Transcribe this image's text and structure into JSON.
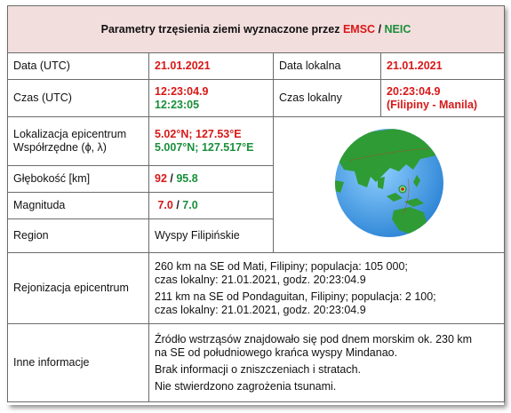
{
  "header": {
    "title_prefix": "Parametry trzęsienia ziemi wyznaczone przez ",
    "emsc": "EMSC",
    "sep": " / ",
    "neic": "NEIC"
  },
  "rows": {
    "data_utc": {
      "label": "Data (UTC)",
      "value": "21.01.2021"
    },
    "data_lokalna": {
      "label": "Data lokalna",
      "value": "21.01.2021"
    },
    "czas_utc": {
      "label": "Czas (UTC)",
      "emsc": "12:23:04.9",
      "neic": "12:23:05"
    },
    "czas_lokalny": {
      "label": "Czas lokalny",
      "value": "20:23:04.9",
      "place": "(Filipiny  - Manila)"
    },
    "lokalizacja": {
      "label_1": "Lokalizacja epicentrum",
      "label_2": "Współrzędne (ϕ, λ)",
      "emsc": "5.02°N; 127.53°E",
      "neic": "5.007°N; 127.517°E"
    },
    "glebokosc": {
      "label": "Głębokość [km]",
      "emsc": "92",
      "sep": " / ",
      "neic": "95.8"
    },
    "magnituda": {
      "label": "Magnituda",
      "emsc": "7.0",
      "sep": " / ",
      "neic": "7.0"
    },
    "region": {
      "label": "Region",
      "value": "Wyspy Filipińskie"
    },
    "rejonizacja": {
      "label": "Rejonizacja epicentrum",
      "p1_line1": "260 km na SE od Mati, Filipiny;  populacja:  105 000;",
      "p1_line2": "czas lokalny: 21.01.2021, godz. 20:23:04.9",
      "p2_line1": "211 km na SE od Pondaguitan, Filipiny;  populacja:  2 100;",
      "p2_line2": "czas lokalny: 21.01.2021, godz. 20:23:04.9"
    },
    "inne": {
      "label": "Inne informacje",
      "p1_line1": "Źródło wstrząsów znajdowało  się pod dnem morskim ok. 230 km",
      "p1_line2": "na SE od południowego  krańca wyspy Mindanao.",
      "p2": "Brak informacji  o zniszczeniach i stratach.",
      "p3": "Nie stwierdzono zagrożenia tsunami."
    }
  },
  "globe": {
    "icon": "globe-map-icon",
    "ocean": "#4fa3e6",
    "land": "#2f9b35",
    "marker": "#d81818"
  }
}
